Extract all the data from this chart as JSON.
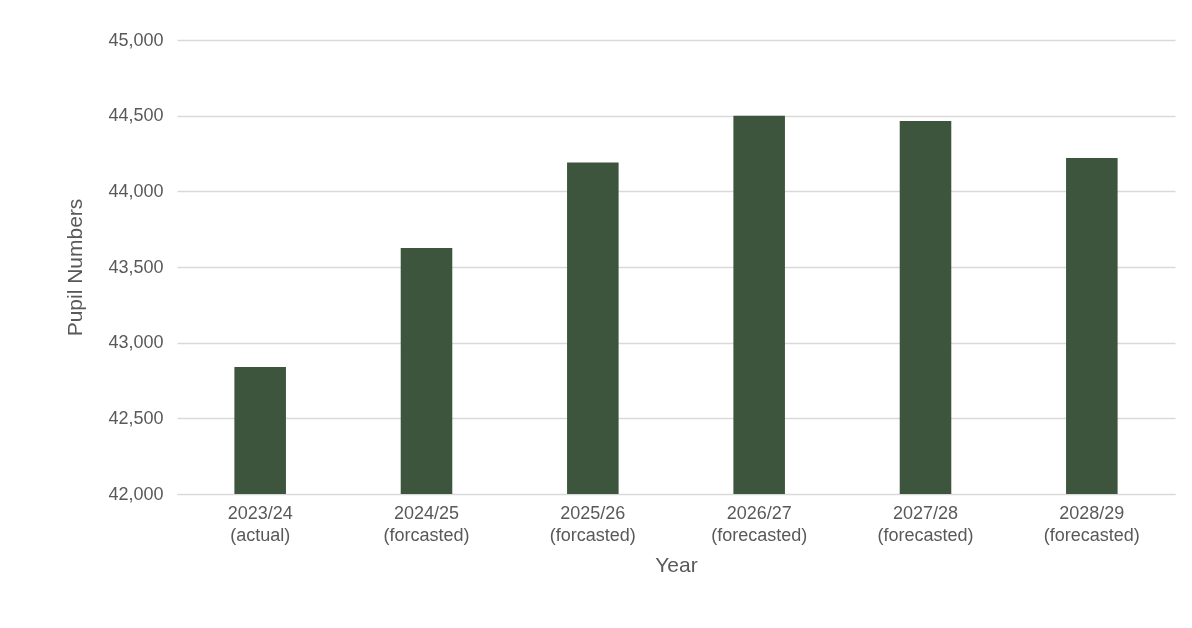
{
  "chart_data": {
    "type": "bar",
    "xlabel": "Year",
    "ylabel": "Pupil Numbers",
    "categories": [
      "2023/24\n(actual)",
      "2024/25\n(forcasted)",
      "2025/26\n(forcasted)",
      "2026/27\n(forecasted)",
      "2027/28\n(forecasted)",
      "2028/29\n(forecasted)"
    ],
    "values": [
      42840,
      43625,
      44190,
      44500,
      44465,
      44220
    ],
    "color": "#3d553c",
    "ylim": [
      42000,
      45000
    ],
    "yticks": [
      {
        "value": 42000,
        "label": "42,000"
      },
      {
        "value": 42500,
        "label": "42,500"
      },
      {
        "value": 43000,
        "label": "43,000"
      },
      {
        "value": 43500,
        "label": "43,500"
      },
      {
        "value": 44000,
        "label": "44,000"
      },
      {
        "value": 44500,
        "label": "44,500"
      },
      {
        "value": 45000,
        "label": "45,000"
      }
    ],
    "grid": "y"
  }
}
